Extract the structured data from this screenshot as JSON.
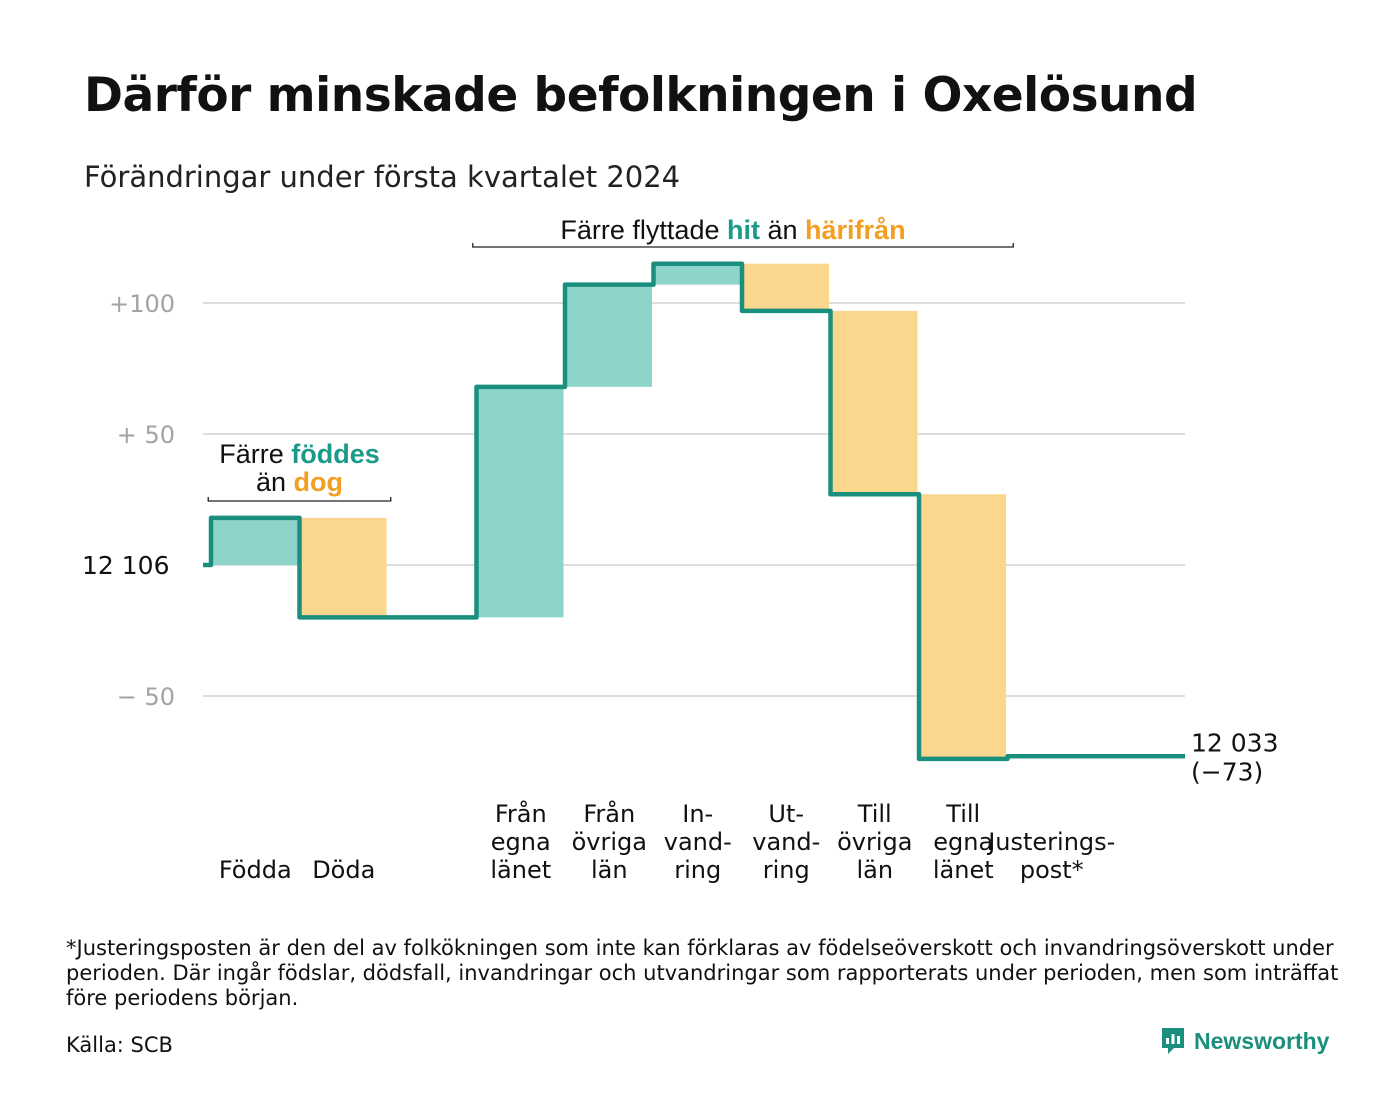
{
  "title": "Därför minskade befolkningen i Oxelösund",
  "subtitle": "Förändringar under första kvartalet 2024",
  "chart_data": {
    "type": "waterfall",
    "start_value": 12106,
    "start_label": "12  106",
    "end_label": "12 033",
    "end_change_label": "(−73)",
    "y_ticks": [
      {
        "value": 100,
        "label": "+100"
      },
      {
        "value": 50,
        "label": "+  50"
      },
      {
        "value": -50,
        "label": "−  50"
      }
    ],
    "grid_values": [
      100,
      50,
      0,
      -50
    ],
    "ylim": [
      -75,
      118
    ],
    "bars": [
      {
        "labels": [
          "Födda"
        ],
        "value": 18,
        "kind": "in"
      },
      {
        "labels": [
          "Döda"
        ],
        "value": -38,
        "kind": "out"
      },
      {
        "labels": [],
        "value": 0,
        "kind": "gap"
      },
      {
        "labels": [
          "Från",
          "egna",
          "länet"
        ],
        "value": 88,
        "kind": "in"
      },
      {
        "labels": [
          "Från",
          "övriga",
          "län"
        ],
        "value": 39,
        "kind": "in"
      },
      {
        "labels": [
          "In-",
          "vand-",
          "ring"
        ],
        "value": 8,
        "kind": "in"
      },
      {
        "labels": [
          "Ut-",
          "vand-",
          "ring"
        ],
        "value": -18,
        "kind": "out"
      },
      {
        "labels": [
          "Till",
          "övriga",
          "län"
        ],
        "value": -70,
        "kind": "out"
      },
      {
        "labels": [
          "Till",
          "egna",
          "länet"
        ],
        "value": -101,
        "kind": "out"
      },
      {
        "labels": [
          "Justerings-",
          "post*"
        ],
        "value": 1,
        "kind": "adjust"
      }
    ],
    "annotations": [
      {
        "parts": [
          [
            "Färre ",
            "plain"
          ],
          [
            "föddes",
            "in"
          ]
        ],
        "parts2": [
          [
            "än ",
            "plain"
          ],
          [
            "dog",
            "out"
          ]
        ]
      },
      {
        "parts": [
          [
            "Färre flyttade ",
            "plain"
          ],
          [
            "hit",
            "in"
          ],
          [
            " än ",
            "plain"
          ],
          [
            "härifrån",
            "out"
          ]
        ]
      }
    ],
    "colors": {
      "in_fill": "#8ed4cb",
      "out_fill": "#fbd68d",
      "line": "#1b8f7e",
      "in_text": "#1b9a8a",
      "out_text": "#f2a024",
      "grid": "#dddddd",
      "tick_text": "#a3a3a3"
    }
  },
  "footnote": "*Justeringsposten är den del av folkökningen som inte kan förklaras av födelseöverskott och invandringsöverskott under perioden. Där ingår födslar, dödsfall, invandringar och utvandringar som rapporterats under perioden, men som inträffat före periodens början.",
  "source": "Källa: SCB",
  "brand": {
    "name": "Newsworthy",
    "icon": "newsworthy-logo-icon"
  }
}
